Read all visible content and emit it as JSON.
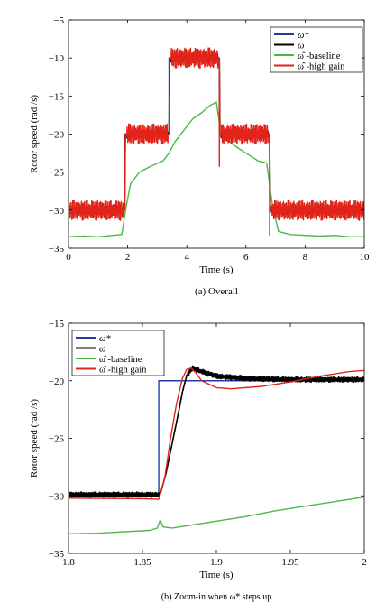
{
  "chart_data": [
    {
      "type": "line",
      "caption": "(a) Overall",
      "xlabel": "Time (s)",
      "ylabel": "Rotor speed (rad /s)",
      "xlim": [
        0,
        10
      ],
      "ylim": [
        -35,
        -5
      ],
      "xticks": [
        0,
        2,
        4,
        6,
        8,
        10
      ],
      "yticks": [
        -5,
        -10,
        -15,
        -20,
        -25,
        -30,
        -35
      ],
      "legend_position": "top-right",
      "legend": [
        "ω*",
        "ω",
        "ω̂ -baseline",
        "ω̂ -high gain"
      ],
      "series": [
        {
          "name": "ω*",
          "color": "#1f3f9f",
          "x": [
            0,
            1.9,
            1.9,
            3.4,
            3.4,
            5.1,
            5.1,
            6.8,
            6.8,
            10
          ],
          "y": [
            -30,
            -30,
            -20,
            -20,
            -10,
            -10,
            -20,
            -20,
            -30,
            -30
          ]
        },
        {
          "name": "ω",
          "color": "#000000",
          "x": [
            0,
            1.9,
            1.92,
            3.4,
            3.42,
            5.1,
            5.12,
            6.8,
            6.82,
            10
          ],
          "y": [
            -30,
            -30,
            -20,
            -20,
            -10,
            -10,
            -20,
            -20,
            -30,
            -30
          ],
          "ripple": 0.6
        },
        {
          "name": "ω̂ -baseline",
          "color": "#4cb848",
          "x": [
            0,
            0.5,
            1.0,
            1.5,
            1.8,
            1.95,
            2.1,
            2.4,
            2.8,
            3.2,
            3.4,
            3.6,
            3.9,
            4.2,
            4.5,
            4.8,
            5.0,
            5.1,
            5.3,
            5.6,
            6.0,
            6.4,
            6.7,
            6.9,
            7.1,
            7.5,
            8.0,
            8.5,
            9.0,
            9.5,
            10
          ],
          "y": [
            -33.5,
            -33.4,
            -33.5,
            -33.3,
            -33.2,
            -29.5,
            -26.5,
            -25.0,
            -24.2,
            -23.5,
            -22.5,
            -21.0,
            -19.5,
            -18.0,
            -17.2,
            -16.2,
            -15.8,
            -18.5,
            -20.5,
            -21.5,
            -22.5,
            -23.5,
            -23.8,
            -29.5,
            -32.8,
            -33.2,
            -33.3,
            -33.4,
            -33.3,
            -33.5,
            -33.5
          ]
        },
        {
          "name": "ω̂ -high gain",
          "color": "#e2231a",
          "x": [
            0,
            1.9,
            1.92,
            3.4,
            3.42,
            5.1,
            5.12,
            6.8,
            6.82,
            10
          ],
          "y": [
            -30,
            -30,
            -20,
            -20,
            -10,
            -10,
            -20,
            -20,
            -30,
            -30
          ],
          "ripple": 1.5,
          "spikes": [
            {
              "x": 5.1,
              "y": -24.3
            },
            {
              "x": 6.8,
              "y": -33.3
            }
          ]
        }
      ]
    },
    {
      "type": "line",
      "caption": "(b) Zoom-in when ω* steps up",
      "xlabel": "Time (s)",
      "ylabel": "Rotor speed (rad /s)",
      "xlim": [
        1.8,
        2.0
      ],
      "ylim": [
        -35,
        -15
      ],
      "xticks": [
        1.8,
        1.85,
        1.9,
        1.95,
        2
      ],
      "yticks": [
        -15,
        -20,
        -25,
        -30,
        -35
      ],
      "legend_position": "top-left",
      "legend": [
        "ω*",
        "ω",
        "ω̂ -baseline",
        "ω̂ -high gain"
      ],
      "series": [
        {
          "name": "ω*",
          "color": "#1f3f9f",
          "x": [
            1.8,
            1.861,
            1.861,
            2.0
          ],
          "y": [
            -30,
            -30,
            -20,
            -20
          ]
        },
        {
          "name": "ω",
          "color": "#000000",
          "x": [
            1.8,
            1.862,
            1.866,
            1.87,
            1.874,
            1.877,
            1.88,
            1.884,
            1.89,
            1.9,
            1.92,
            1.95,
            2.0
          ],
          "y": [
            -29.9,
            -29.9,
            -28.0,
            -25.5,
            -23.0,
            -21.0,
            -19.5,
            -18.9,
            -19.2,
            -19.6,
            -19.8,
            -19.9,
            -19.9
          ],
          "ripple": 0.25
        },
        {
          "name": "ω̂ -baseline",
          "color": "#4cb848",
          "x": [
            1.8,
            1.82,
            1.84,
            1.855,
            1.86,
            1.862,
            1.864,
            1.87,
            1.88,
            1.9,
            1.92,
            1.94,
            1.96,
            1.98,
            2.0
          ],
          "y": [
            -33.3,
            -33.25,
            -33.1,
            -33.0,
            -32.8,
            -32.1,
            -32.7,
            -32.8,
            -32.6,
            -32.2,
            -31.8,
            -31.3,
            -30.9,
            -30.5,
            -30.1
          ]
        },
        {
          "name": "ω̂ -high gain",
          "color": "#e2231a",
          "x": [
            1.8,
            1.85,
            1.861,
            1.865,
            1.869,
            1.873,
            1.877,
            1.88,
            1.883,
            1.886,
            1.89,
            1.9,
            1.91,
            1.93,
            1.95,
            1.97,
            1.99,
            2.0
          ],
          "y": [
            -30.2,
            -30.25,
            -30.3,
            -28.5,
            -25.0,
            -22.0,
            -19.8,
            -19.0,
            -18.9,
            -19.3,
            -20.0,
            -20.6,
            -20.7,
            -20.5,
            -20.1,
            -19.6,
            -19.2,
            -19.1
          ]
        }
      ]
    }
  ]
}
